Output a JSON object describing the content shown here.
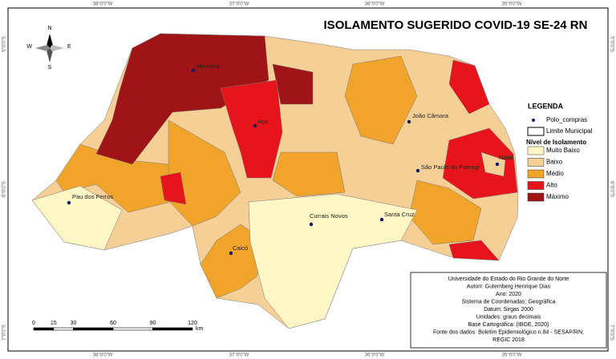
{
  "header": {
    "title": "ISOLAMENTO SUGERIDO COVID-19 SE-24 RN"
  },
  "graticule": {
    "longitudes": [
      "38°0'0\"W",
      "37°0'0\"W",
      "36°0'0\"W",
      "35°0'0\"W"
    ],
    "latitudes": [
      "5°0'0\"S",
      "6°0'0\"S",
      "7°0'0\"S"
    ]
  },
  "compass": {
    "n": "N",
    "s": "S",
    "w": "W",
    "e": "E"
  },
  "cities": [
    "Mossoró",
    "Açu",
    "João Câmara",
    "São Paulo do Potengi",
    "Natal",
    "Pau dos Ferros",
    "Currais Novos",
    "Santa Cruz",
    "Caicó"
  ],
  "legend": {
    "title": "LEGENDA",
    "symbols": [
      "Polo_compras",
      "Limite Municipal"
    ],
    "classes_title": "Nível de Isolamento",
    "classes": [
      {
        "label": "Muito Baixo",
        "color": "#fff6c6"
      },
      {
        "label": "Baixo",
        "color": "#f5cf96"
      },
      {
        "label": "Médio",
        "color": "#f0a52a"
      },
      {
        "label": "Alto",
        "color": "#e8141c"
      },
      {
        "label": "Máximo",
        "color": "#a01416"
      }
    ]
  },
  "scale_bar": {
    "ticks": [
      0,
      15,
      30,
      60,
      90,
      120
    ],
    "unit": "km"
  },
  "credits": [
    "Universidade do Estado do Rio Grande do Norte",
    "Autorr: Gutemberg Henrique Dias",
    "Ano: 2020",
    "Sistema de Coordenadas: Geográfica",
    "Datum: Sirgas 2000",
    "Unidades: graus decimais",
    "Base Cartográfica: (IBGE, 2020)",
    "Fonte dos dados: Boletim Epidemiológico n.84 - SESAP/RN;",
    "REGIC 2018"
  ]
}
